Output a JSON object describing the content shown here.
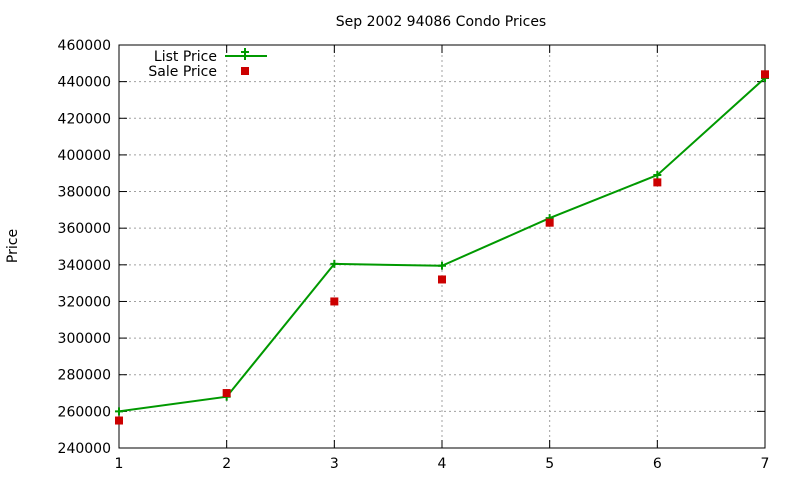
{
  "chart_data": {
    "type": "line",
    "title": "Sep 2002 94086 Condo Prices",
    "xlabel": "",
    "ylabel": "Price",
    "x": [
      1,
      2,
      3,
      4,
      5,
      6,
      7
    ],
    "xlim": [
      1,
      7
    ],
    "ylim": [
      240000,
      460000
    ],
    "xticks": [
      "1",
      "2",
      "3",
      "4",
      "5",
      "6",
      "7"
    ],
    "yticks": [
      "240000",
      "260000",
      "280000",
      "300000",
      "320000",
      "340000",
      "360000",
      "380000",
      "400000",
      "420000",
      "440000",
      "460000"
    ],
    "grid": true,
    "legend_position": "top-left",
    "series": [
      {
        "name": "List Price",
        "style": "line with plus markers",
        "color": "#009900",
        "values": [
          260000,
          268000,
          340500,
          339500,
          365500,
          389000,
          442000
        ]
      },
      {
        "name": "Sale Price",
        "style": "square points",
        "color": "#cc0000",
        "values": [
          255000,
          270000,
          320000,
          332000,
          363000,
          385000,
          444000
        ]
      }
    ]
  }
}
